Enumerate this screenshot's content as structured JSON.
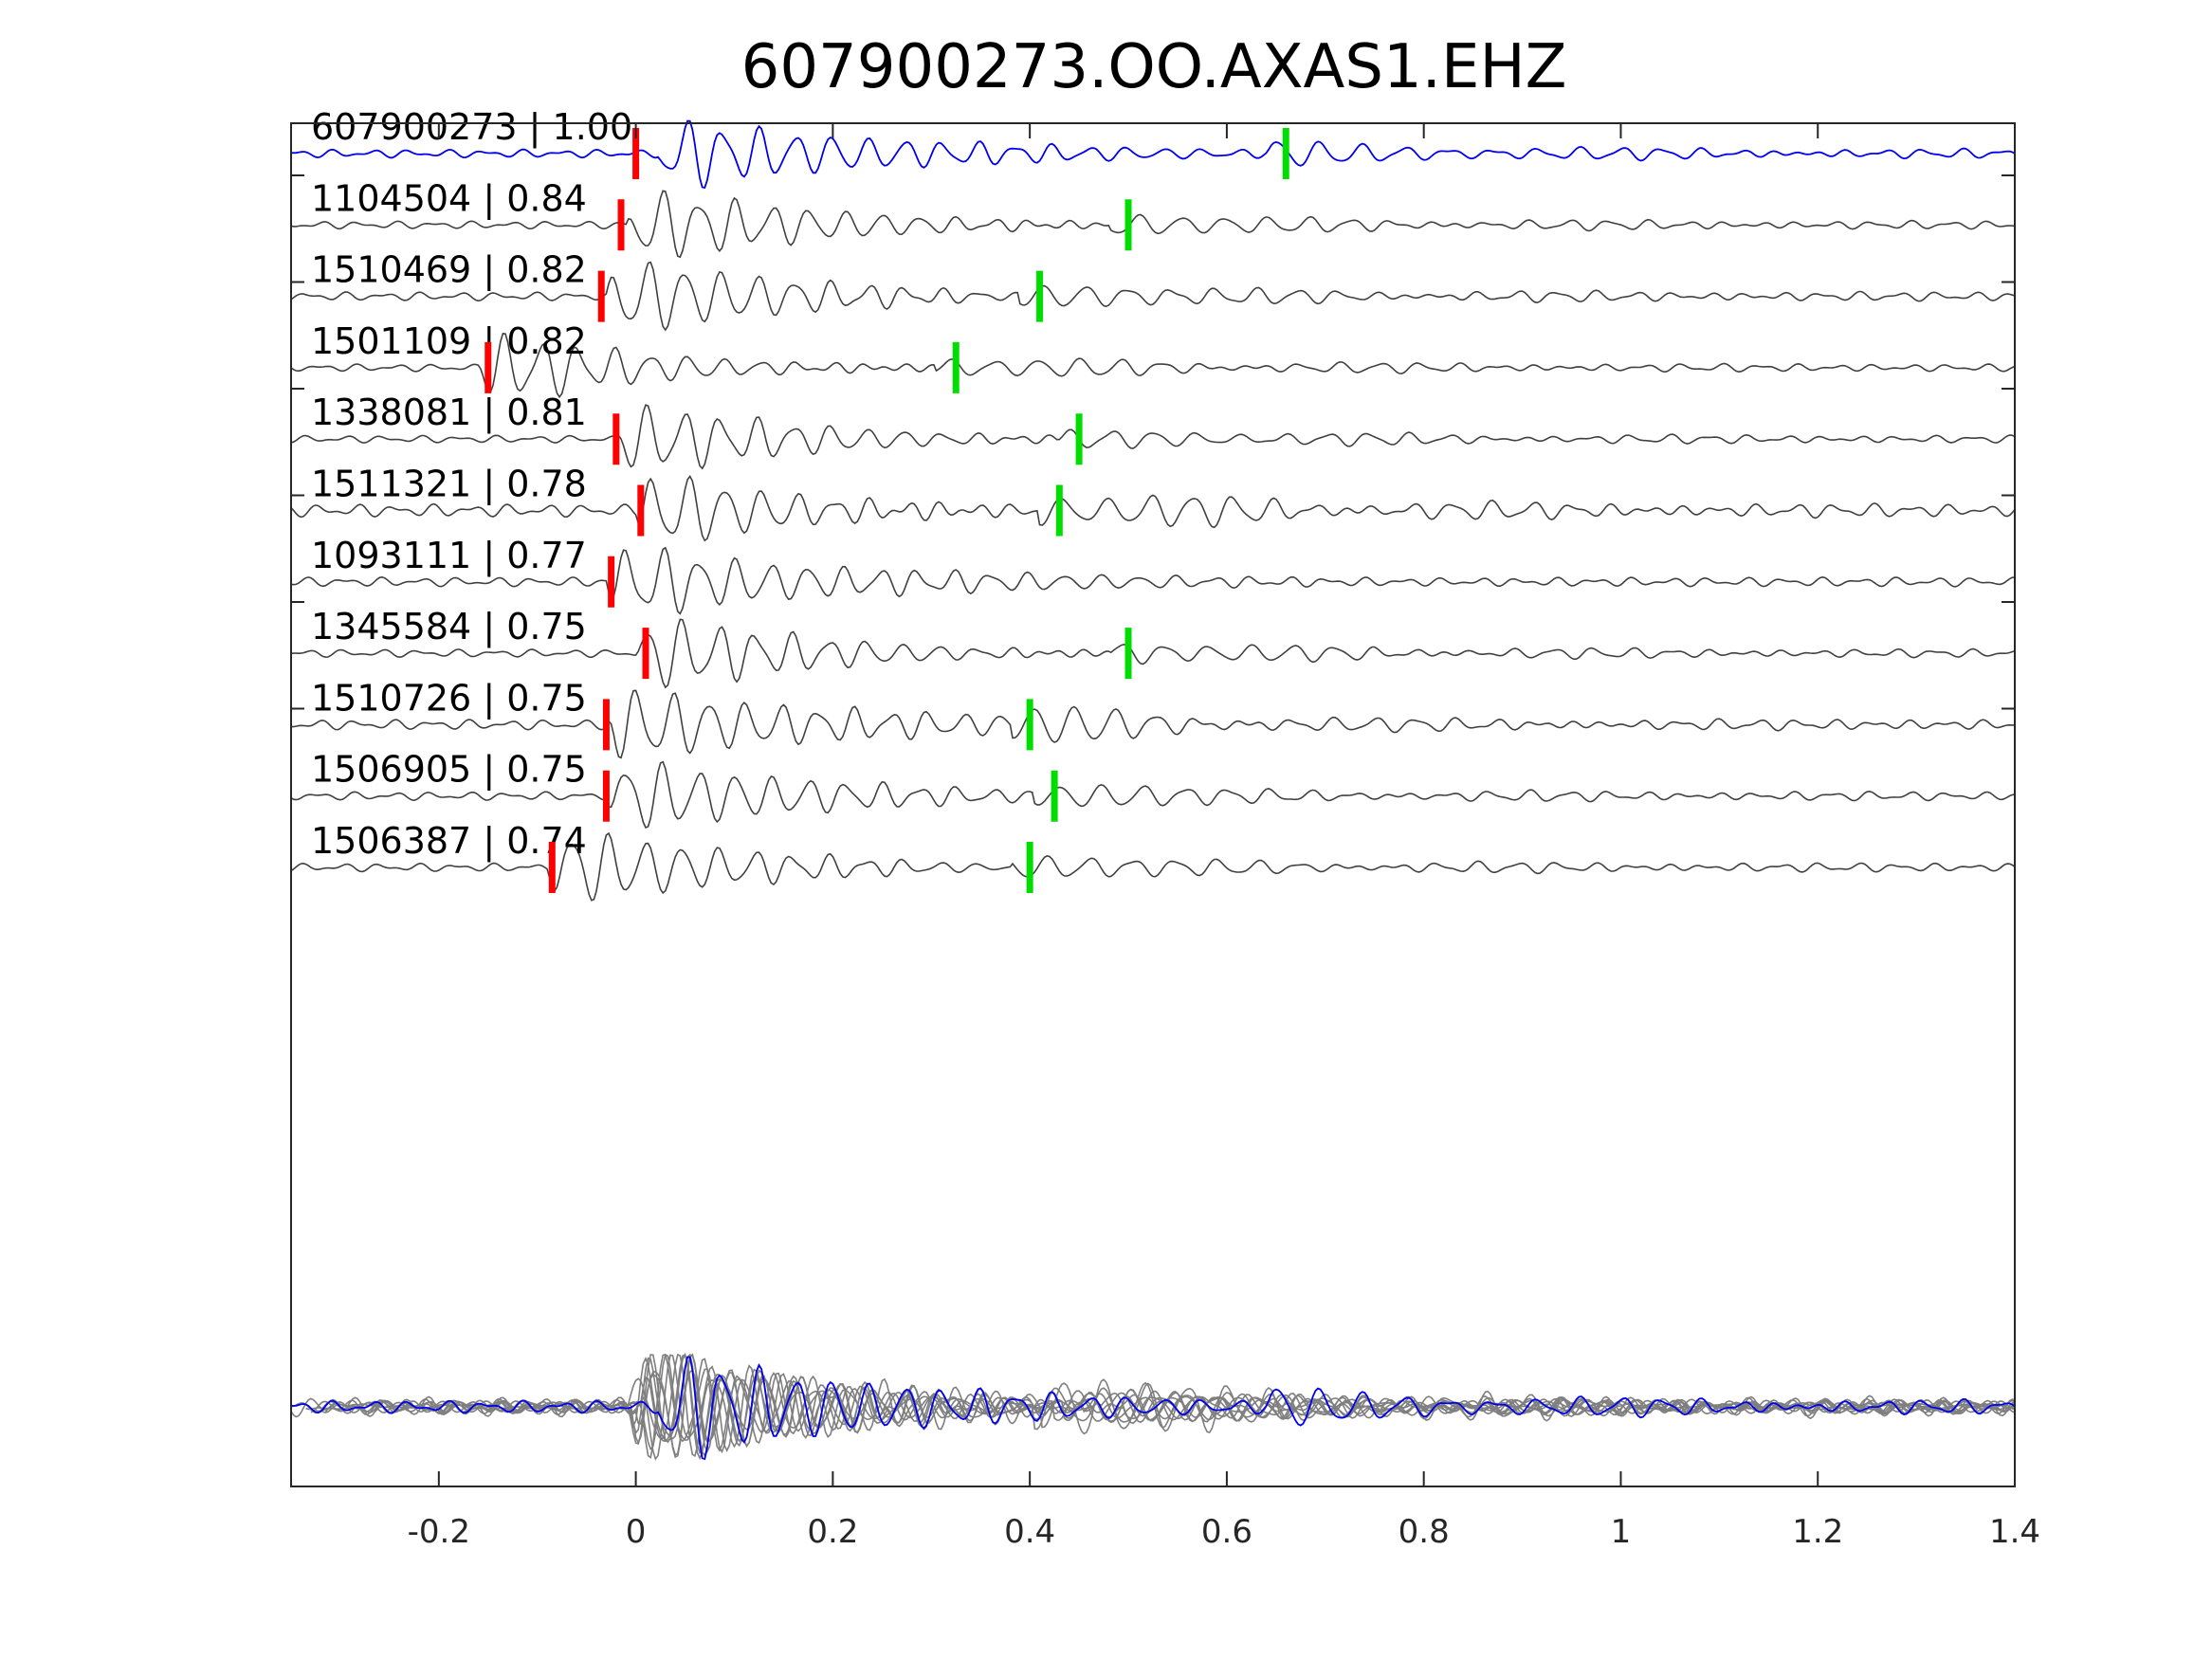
{
  "chart_data": {
    "type": "line",
    "title": "607900273.OO.AXAS1.EHZ",
    "xlabel": "",
    "ylabel": "",
    "xlim": [
      -0.35,
      1.4
    ],
    "xticks": [
      -0.2,
      0,
      0.2,
      0.4,
      0.6,
      0.8,
      1,
      1.2,
      1.4
    ],
    "xtick_labels": [
      "-0.2",
      "0",
      "0.2",
      "0.4",
      "0.6",
      "0.8",
      "1",
      "1.2",
      "1.4"
    ],
    "grid": false,
    "colors": {
      "target_trace": "#0000ee",
      "match_trace": "#404040",
      "overlay_trace": "#7f7f7f",
      "p_pick": "#ff0000",
      "s_pick": "#00dd00"
    },
    "series": [
      {
        "name": "607900273",
        "cc": "1.00",
        "label": "607900273 | 1.00",
        "p_time": 0.0,
        "s_time": 0.66,
        "onset": 0.02,
        "amp": 1.0,
        "seed": 3
      },
      {
        "name": "1104504",
        "cc": "0.84",
        "label": "1104504 | 0.84",
        "p_time": -0.015,
        "s_time": 0.5,
        "onset": -0.01,
        "amp": 1.0,
        "seed": 7
      },
      {
        "name": "1510469",
        "cc": "0.82",
        "label": "1510469 | 0.82",
        "p_time": -0.035,
        "s_time": 0.41,
        "onset": -0.03,
        "amp": 0.95,
        "seed": 11
      },
      {
        "name": "1501109",
        "cc": "0.82",
        "label": "1501109 | 0.82",
        "p_time": -0.15,
        "s_time": 0.325,
        "onset": -0.16,
        "amp": 1.0,
        "seed": 13
      },
      {
        "name": "1338081",
        "cc": "0.81",
        "label": "1338081 | 0.81",
        "p_time": -0.02,
        "s_time": 0.45,
        "onset": -0.02,
        "amp": 1.0,
        "seed": 17
      },
      {
        "name": "1511321",
        "cc": "0.78",
        "label": "1511321 | 0.78",
        "p_time": 0.005,
        "s_time": 0.43,
        "onset": 0.0,
        "amp": 0.7,
        "seed": 19
      },
      {
        "name": "1093111",
        "cc": "0.77",
        "label": "1093111 | 0.77",
        "p_time": -0.025,
        "s_time": null,
        "onset": -0.03,
        "amp": 1.0,
        "seed": 23
      },
      {
        "name": "1345584",
        "cc": "0.75",
        "label": "1345584 | 0.75",
        "p_time": 0.01,
        "s_time": 0.5,
        "onset": 0.0,
        "amp": 1.0,
        "seed": 29
      },
      {
        "name": "1510726",
        "cc": "0.75",
        "label": "1510726 | 0.75",
        "p_time": -0.03,
        "s_time": 0.4,
        "onset": -0.03,
        "amp": 0.95,
        "seed": 31
      },
      {
        "name": "1506905",
        "cc": "0.75",
        "label": "1506905 | 0.75",
        "p_time": -0.03,
        "s_time": 0.425,
        "onset": -0.03,
        "amp": 0.95,
        "seed": 37
      },
      {
        "name": "1506387",
        "cc": "0.74",
        "label": "1506387 | 0.74",
        "p_time": -0.085,
        "s_time": 0.4,
        "onset": -0.09,
        "amp": 1.0,
        "seed": 41
      }
    ]
  }
}
